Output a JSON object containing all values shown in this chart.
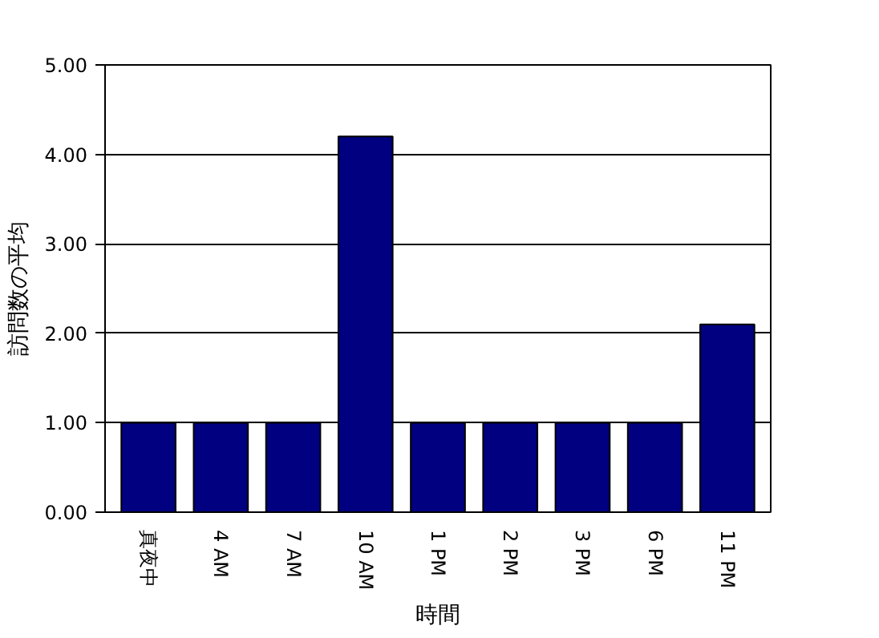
{
  "chart_data": {
    "type": "bar",
    "xlabel": "時間",
    "ylabel": "訪問数の平均",
    "categories": [
      "真夜中",
      "4 AM",
      "7 AM",
      "10 AM",
      "1 PM",
      "2 PM",
      "3 PM",
      "6 PM",
      "11 PM"
    ],
    "values": [
      1.0,
      1.0,
      1.0,
      4.2,
      1.0,
      1.0,
      1.0,
      1.0,
      2.1
    ],
    "color": "#000080",
    "ylim": [
      0,
      5
    ],
    "yticks": [
      {
        "value": 0,
        "label": "0.00"
      },
      {
        "value": 1,
        "label": "1.00"
      },
      {
        "value": 2,
        "label": "2.00"
      },
      {
        "value": 3,
        "label": "3.00"
      },
      {
        "value": 4,
        "label": "4.00"
      },
      {
        "value": 5,
        "label": "5.00"
      }
    ],
    "grid": "y"
  }
}
